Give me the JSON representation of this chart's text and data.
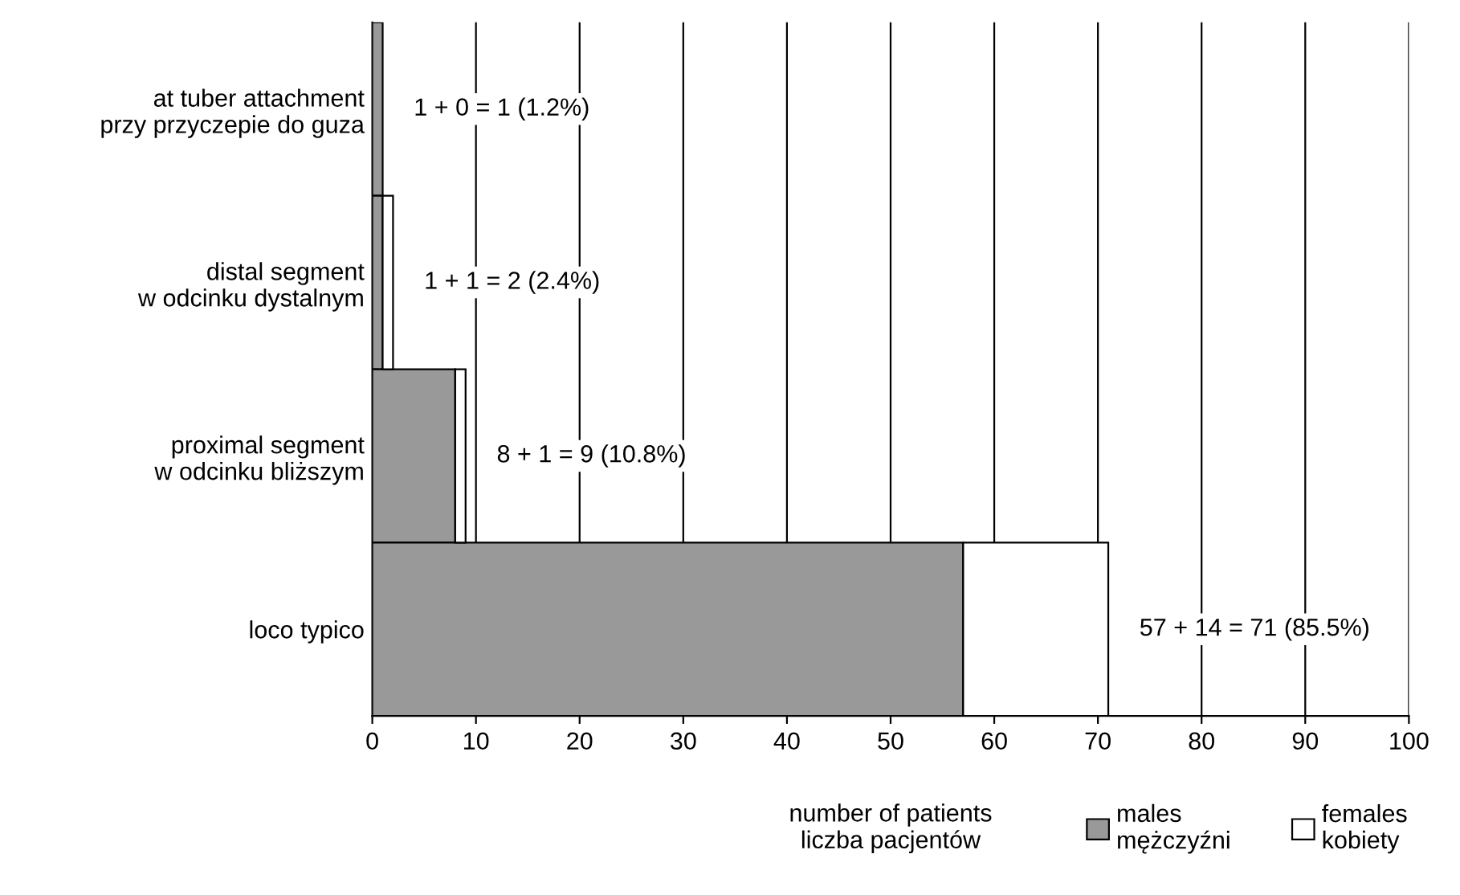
{
  "chart_data": {
    "type": "bar",
    "orientation": "horizontal",
    "stacked": true,
    "categories": [
      "at tuber attachment\nprzy przyczepie do guza",
      "distal segment\nw odcinku dystalnym",
      "proximal segment\nw odcinku bliższym",
      "loco typico"
    ],
    "series": [
      {
        "name": "males\nmężczyźni",
        "color": "#999999",
        "values": [
          1,
          1,
          8,
          57
        ]
      },
      {
        "name": "females\nkobiety",
        "color": "#ffffff",
        "values": [
          0,
          1,
          1,
          14
        ]
      }
    ],
    "totals": [
      "1 + 0 = 1 (1.2%)",
      "1 + 1 = 2 (2.4%)",
      "8 + 1 = 9 (10.8%)",
      "57 + 14 = 71 (85.5%)"
    ],
    "xlabel": "number of patients\nliczba pacjentów",
    "xlim": [
      0,
      100
    ],
    "xticks": [
      0,
      10,
      20,
      30,
      40,
      50,
      60,
      70,
      80,
      90,
      100
    ],
    "grid": "x",
    "legend": "bottom right"
  }
}
